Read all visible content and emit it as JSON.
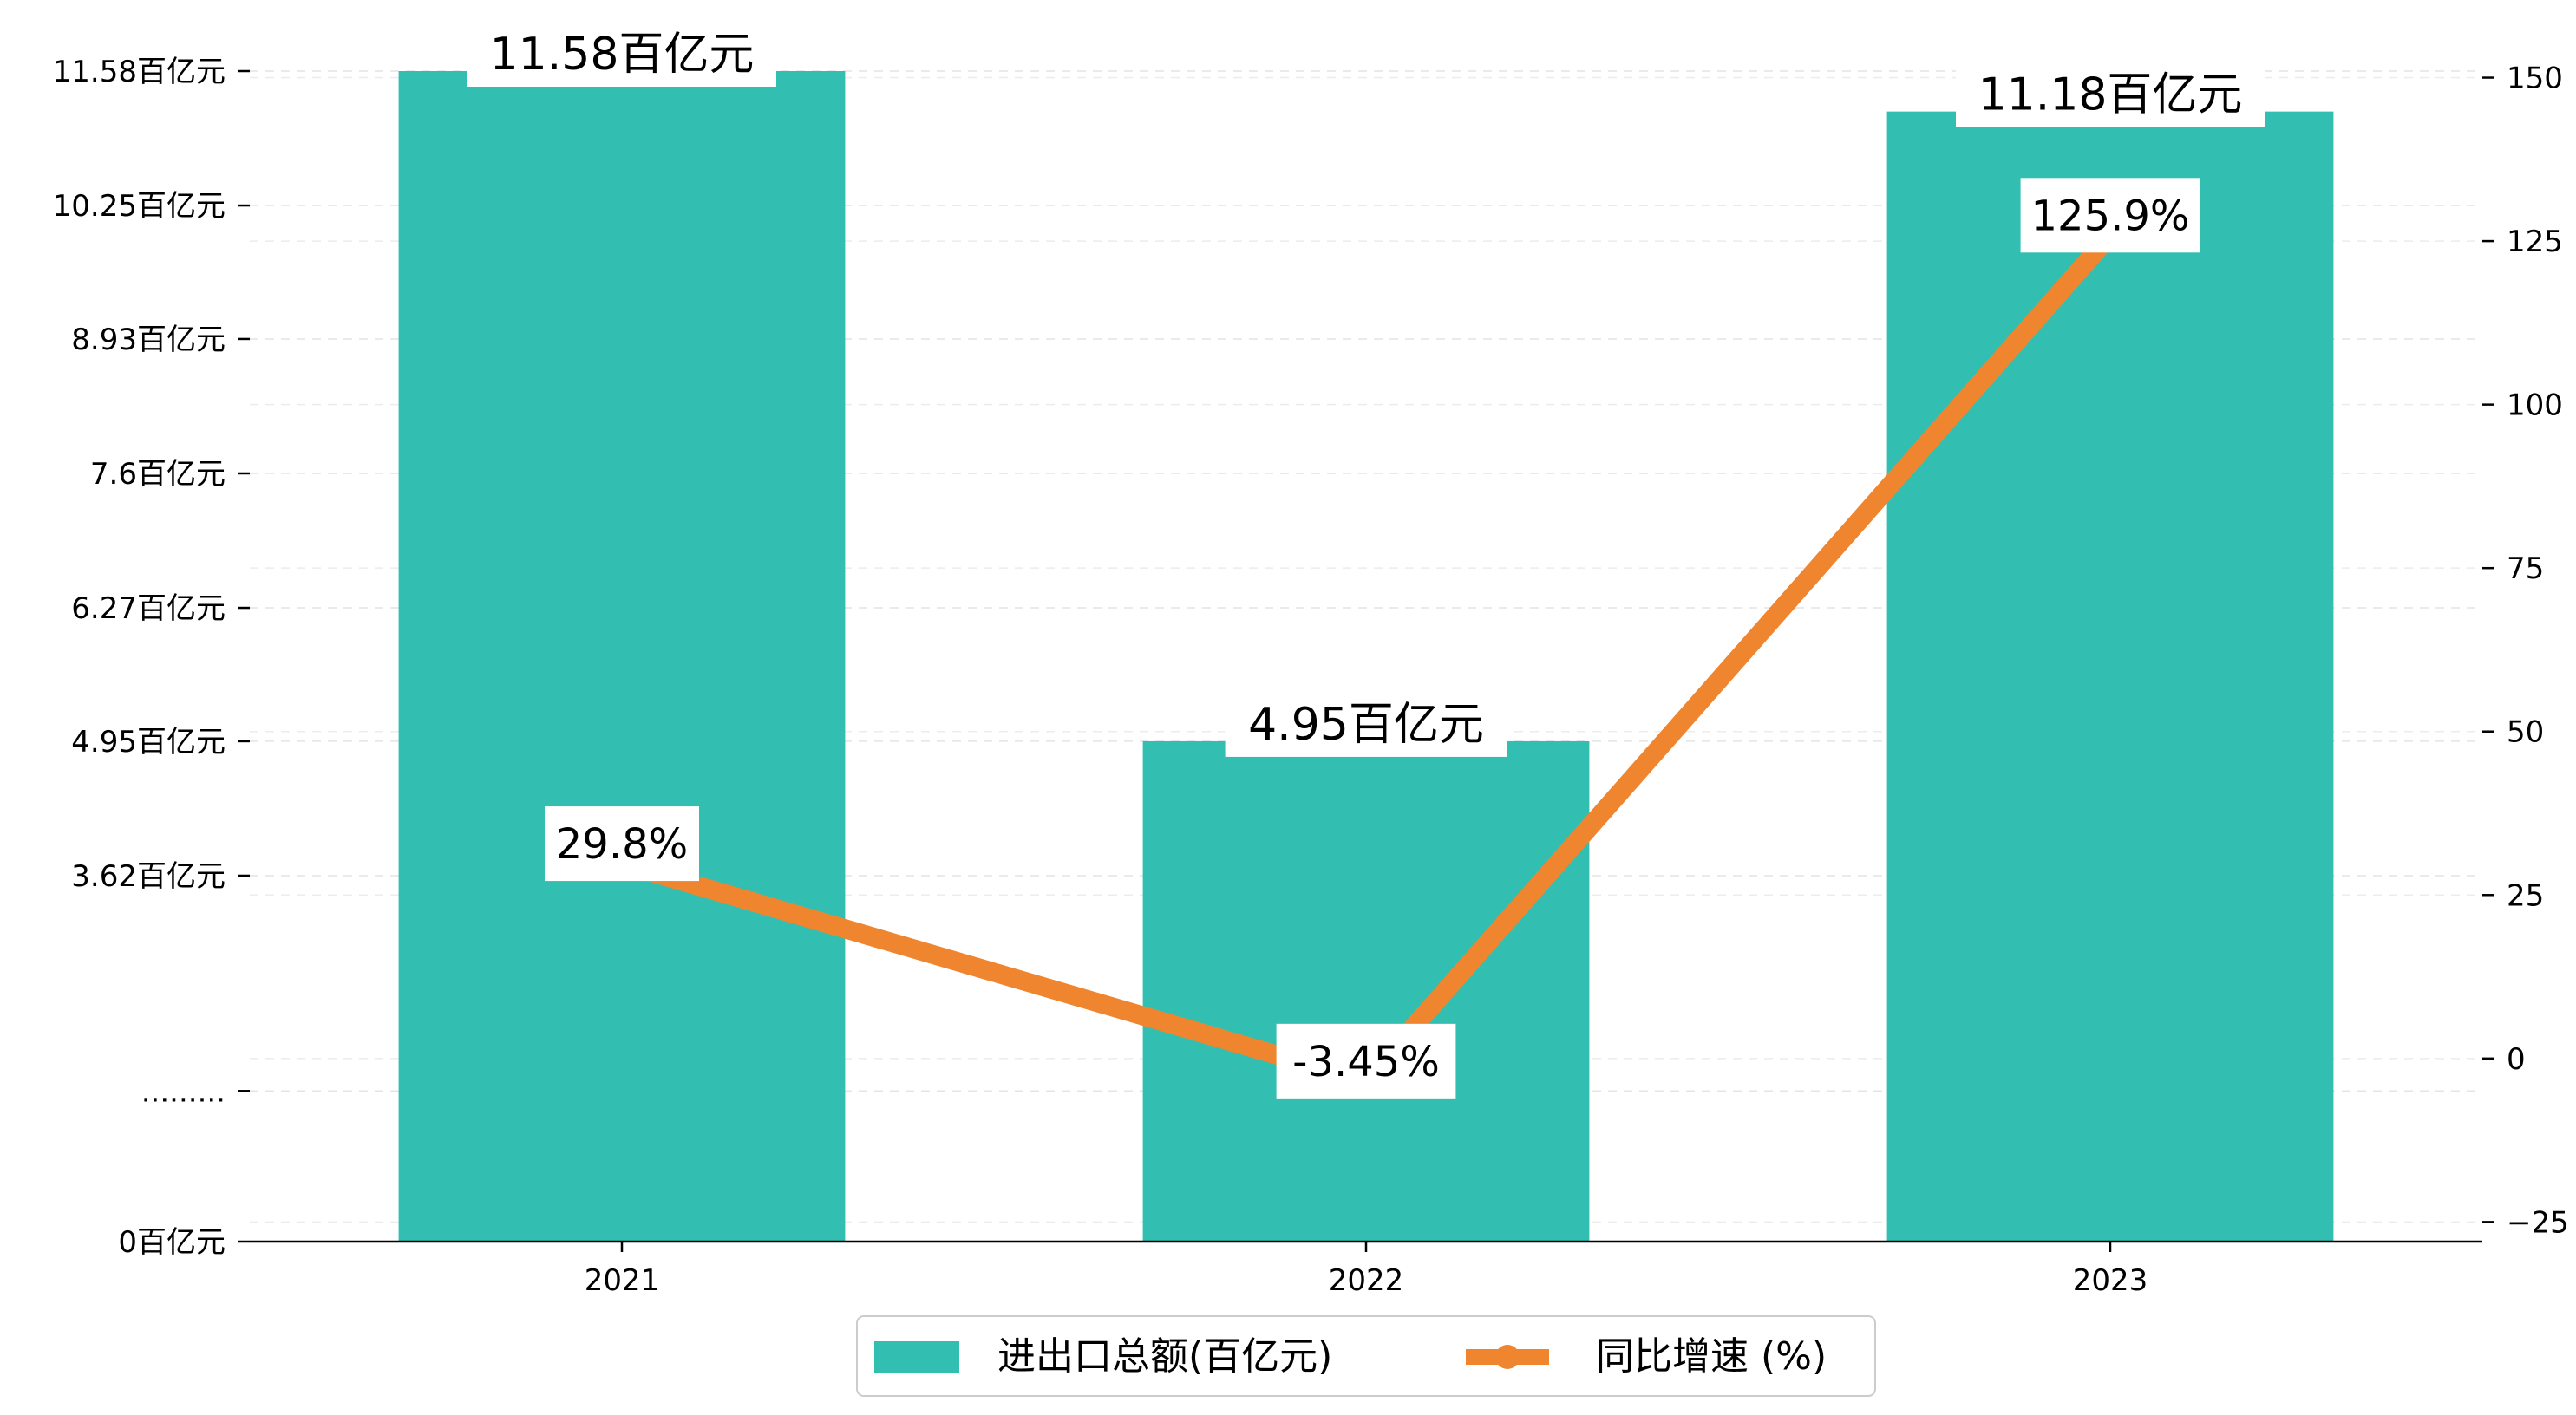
{
  "chart_data": {
    "type": "bar",
    "categories": [
      "2021",
      "2022",
      "2023"
    ],
    "series": [
      {
        "name": "进出口总额(百亿元)",
        "type": "bar",
        "axis": "left",
        "values": [
          11.58,
          4.95,
          11.18
        ],
        "labels": [
          "11.58百亿元",
          "4.95百亿元",
          "11.18百亿元"
        ],
        "color": "#32bfb2"
      },
      {
        "name": "同比增速 (%)",
        "type": "line",
        "axis": "right",
        "values": [
          29.8,
          -3.45,
          125.9
        ],
        "labels": [
          "29.8%",
          "-3.45%",
          "125.9%"
        ],
        "color": "#f0852f"
      }
    ],
    "left_axis": {
      "ylim": [
        0,
        11.58
      ],
      "ticks": [
        {
          "value": 0,
          "label": "0百亿元"
        },
        {
          "value": 1.49,
          "label": "........."
        },
        {
          "value": 3.62,
          "label": "3.62百亿元"
        },
        {
          "value": 4.95,
          "label": "4.95百亿元"
        },
        {
          "value": 6.27,
          "label": "6.27百亿元"
        },
        {
          "value": 7.6,
          "label": "7.6百亿元"
        },
        {
          "value": 8.93,
          "label": "8.93百亿元"
        },
        {
          "value": 10.25,
          "label": "10.25百亿元"
        },
        {
          "value": 11.58,
          "label": "11.58百亿元"
        }
      ]
    },
    "right_axis": {
      "ylim": [
        -28,
        151
      ],
      "ticks": [
        -25,
        0,
        25,
        50,
        75,
        100,
        125,
        150
      ]
    },
    "grid": true,
    "legend": {
      "placement": "bottom-center"
    }
  }
}
